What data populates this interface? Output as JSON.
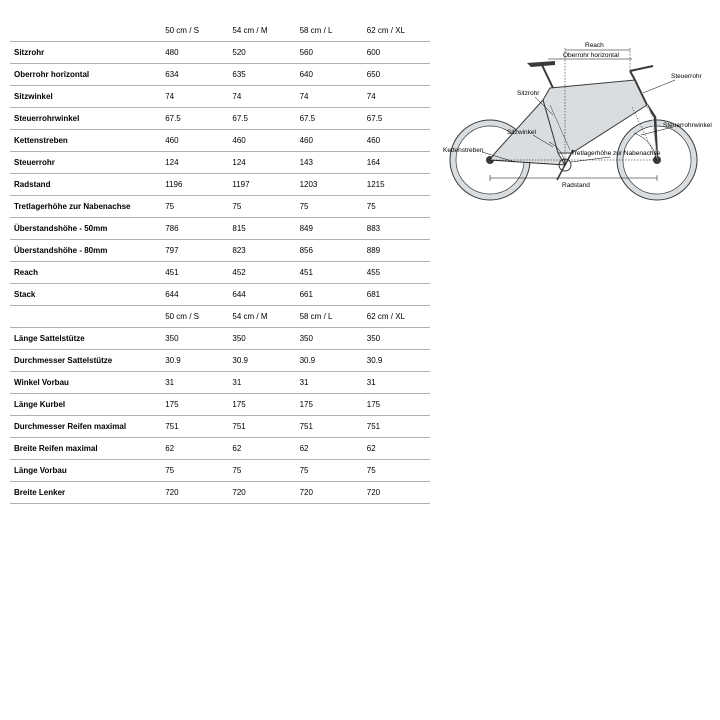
{
  "sizes": [
    "50 cm / S",
    "54 cm / M",
    "58 cm / L",
    "62 cm / XL"
  ],
  "geometry_rows": [
    {
      "label": "Sitzrohr",
      "v": [
        "480",
        "520",
        "560",
        "600"
      ]
    },
    {
      "label": "Oberrohr horizontal",
      "v": [
        "634",
        "635",
        "640",
        "650"
      ]
    },
    {
      "label": "Sitzwinkel",
      "v": [
        "74",
        "74",
        "74",
        "74"
      ]
    },
    {
      "label": "Steuerrohrwinkel",
      "v": [
        "67.5",
        "67.5",
        "67.5",
        "67.5"
      ]
    },
    {
      "label": "Kettenstreben",
      "v": [
        "460",
        "460",
        "460",
        "460"
      ]
    },
    {
      "label": "Steuerrohr",
      "v": [
        "124",
        "124",
        "143",
        "164"
      ]
    },
    {
      "label": "Radstand",
      "v": [
        "1196",
        "1197",
        "1203",
        "1215"
      ]
    },
    {
      "label": "Tretlagerhöhe zur Nabenachse",
      "v": [
        "75",
        "75",
        "75",
        "75"
      ]
    },
    {
      "label": "Überstandshöhe - 50mm",
      "v": [
        "786",
        "815",
        "849",
        "883"
      ]
    },
    {
      "label": "Überstandshöhe - 80mm",
      "v": [
        "797",
        "823",
        "856",
        "889"
      ]
    },
    {
      "label": "Reach",
      "v": [
        "451",
        "452",
        "451",
        "455"
      ]
    },
    {
      "label": "Stack",
      "v": [
        "644",
        "644",
        "661",
        "681"
      ]
    }
  ],
  "component_rows": [
    {
      "label": "Länge Sattelstütze",
      "v": [
        "350",
        "350",
        "350",
        "350"
      ]
    },
    {
      "label": "Durchmesser Sattelstütze",
      "v": [
        "30.9",
        "30.9",
        "30.9",
        "30.9"
      ]
    },
    {
      "label": "Winkel Vorbau",
      "v": [
        "31",
        "31",
        "31",
        "31"
      ]
    },
    {
      "label": "Länge Kurbel",
      "v": [
        "175",
        "175",
        "175",
        "175"
      ]
    },
    {
      "label": "Durchmesser Reifen maximal",
      "v": [
        "751",
        "751",
        "751",
        "751"
      ]
    },
    {
      "label": "Breite Reifen maximal",
      "v": [
        "62",
        "62",
        "62",
        "62"
      ]
    },
    {
      "label": "Länge Vorbau",
      "v": [
        "75",
        "75",
        "75",
        "75"
      ]
    },
    {
      "label": "Breite Lenker",
      "v": [
        "720",
        "720",
        "720",
        "720"
      ]
    }
  ],
  "diagram": {
    "fill": "#d9dde0",
    "stroke": "#3a3a3a",
    "labels": {
      "reach": "Reach",
      "oberrohr": "Oberrohr horizontal",
      "steuerrohr": "Steuerrohr",
      "sitzrohr": "Sitzrohr",
      "sitzwinkel": "Sitzwinkel",
      "steuerrohrwinkel": "Steuerrohrwinkel",
      "kettenstreben": "Kettenstreben",
      "tretlager": "Tretlagerhöhe zur Nabenachse",
      "radstand": "Radstand"
    }
  }
}
